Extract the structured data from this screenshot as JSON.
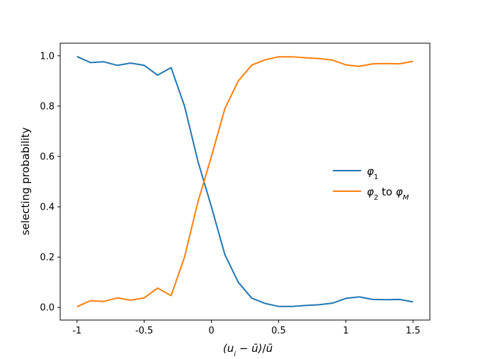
{
  "chart_data": {
    "type": "line",
    "xlabel": "(u_i - ū)/ū",
    "ylabel": "selecting probability",
    "xlim": [
      -1.125,
      1.625
    ],
    "ylim": [
      -0.05,
      1.05
    ],
    "x_ticks": [
      -1,
      -0.5,
      0,
      0.5,
      1,
      1.5
    ],
    "x_tick_labels": [
      "-1",
      "-0.5",
      "0",
      "0.5",
      "1",
      "1.5"
    ],
    "y_ticks": [
      0,
      0.2,
      0.4,
      0.6,
      0.8,
      1.0
    ],
    "y_tick_labels": [
      "0.0",
      "0.2",
      "0.4",
      "0.6",
      "0.8",
      "1.0"
    ],
    "grid": false,
    "legend_position": "center-right",
    "x": [
      -1,
      -0.9,
      -0.8,
      -0.7,
      -0.6,
      -0.5,
      -0.4,
      -0.3,
      -0.2,
      -0.1,
      0,
      0.1,
      0.2,
      0.3,
      0.4,
      0.5,
      0.6,
      0.7,
      0.8,
      0.9,
      1.0,
      1.1,
      1.2,
      1.3,
      1.4,
      1.5
    ],
    "series": [
      {
        "name": "φ1",
        "color": "#1f77b4",
        "values": [
          0.997,
          0.973,
          0.976,
          0.962,
          0.971,
          0.962,
          0.923,
          0.953,
          0.8,
          0.58,
          0.4,
          0.21,
          0.1,
          0.037,
          0.016,
          0.004,
          0.004,
          0.008,
          0.011,
          0.017,
          0.036,
          0.042,
          0.032,
          0.031,
          0.032,
          0.022
        ]
      },
      {
        "name": "φ2 to φM",
        "color": "#ff7f0e",
        "values": [
          0.003,
          0.027,
          0.024,
          0.038,
          0.029,
          0.038,
          0.077,
          0.047,
          0.2,
          0.42,
          0.6,
          0.79,
          0.9,
          0.963,
          0.984,
          0.996,
          0.996,
          0.992,
          0.989,
          0.983,
          0.964,
          0.958,
          0.968,
          0.969,
          0.968,
          0.978
        ]
      }
    ]
  }
}
